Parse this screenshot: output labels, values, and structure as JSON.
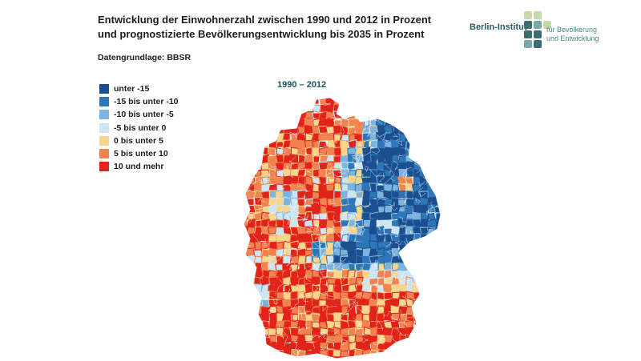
{
  "title": {
    "line1": "Entwicklung der Einwohnerzahl zwischen 1990 und 2012 in Prozent",
    "line2": "und prognostizierte Bevölkerungsentwicklung bis 2035 in Prozent"
  },
  "source": "Datengrundlage: BBSR",
  "logo": {
    "name": "Berlin-Institut",
    "sub_line1": "für Bevölkerung",
    "sub_line2": "und Entwicklung"
  },
  "map": {
    "period_label": "1990 – 2012",
    "region": "Deutschland (Kreise)"
  },
  "legend": [
    {
      "label": "unter -15",
      "color": "#1b4f8f"
    },
    {
      "label": "-15 bis unter -10",
      "color": "#2f76b8"
    },
    {
      "label": "-10 bis unter -5",
      "color": "#7db4de"
    },
    {
      "label": "-5 bis unter 0",
      "color": "#cfe5f3"
    },
    {
      "label": "0 bis unter 5",
      "color": "#f8d58a"
    },
    {
      "label": "5 bis unter 10",
      "color": "#f0834f"
    },
    {
      "label": "10 und mehr",
      "color": "#e2231a"
    }
  ],
  "colors": {
    "logo_dark": "#3a6e74",
    "logo_mid": "#7aa9a5",
    "logo_light": "#c7d9a6"
  }
}
